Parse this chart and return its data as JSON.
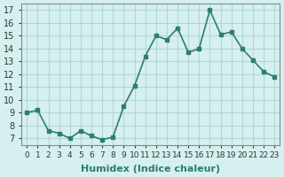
{
  "x": [
    0,
    1,
    2,
    3,
    4,
    5,
    6,
    7,
    8,
    9,
    10,
    11,
    12,
    13,
    14,
    15,
    16,
    17,
    18,
    19,
    20,
    21,
    22,
    23
  ],
  "y": [
    9.0,
    9.2,
    7.6,
    7.4,
    7.0,
    7.6,
    7.2,
    6.9,
    7.1,
    9.5,
    11.1,
    13.4,
    15.0,
    14.7,
    15.6,
    13.7,
    14.0,
    17.0,
    15.1,
    15.3,
    14.0,
    13.1,
    12.2,
    11.8
  ],
  "line_color": "#2e7d6e",
  "marker": "s",
  "marker_size": 3,
  "bg_color": "#d6f0ef",
  "grid_color": "#b0d8d5",
  "xlabel": "Humidex (Indice chaleur)",
  "ylim": [
    6.5,
    17.5
  ],
  "xlim": [
    -0.5,
    23.5
  ],
  "yticks": [
    7,
    8,
    9,
    10,
    11,
    12,
    13,
    14,
    15,
    16,
    17
  ],
  "xtick_labels": [
    "0",
    "1",
    "2",
    "3",
    "4",
    "5",
    "6",
    "7",
    "8",
    "9",
    "10",
    "11",
    "12",
    "13",
    "14",
    "15",
    "16",
    "17",
    "18",
    "19",
    "20",
    "21",
    "22",
    "23"
  ],
  "xlabel_fontsize": 8,
  "tick_fontsize": 7,
  "tick_color": "#333333"
}
